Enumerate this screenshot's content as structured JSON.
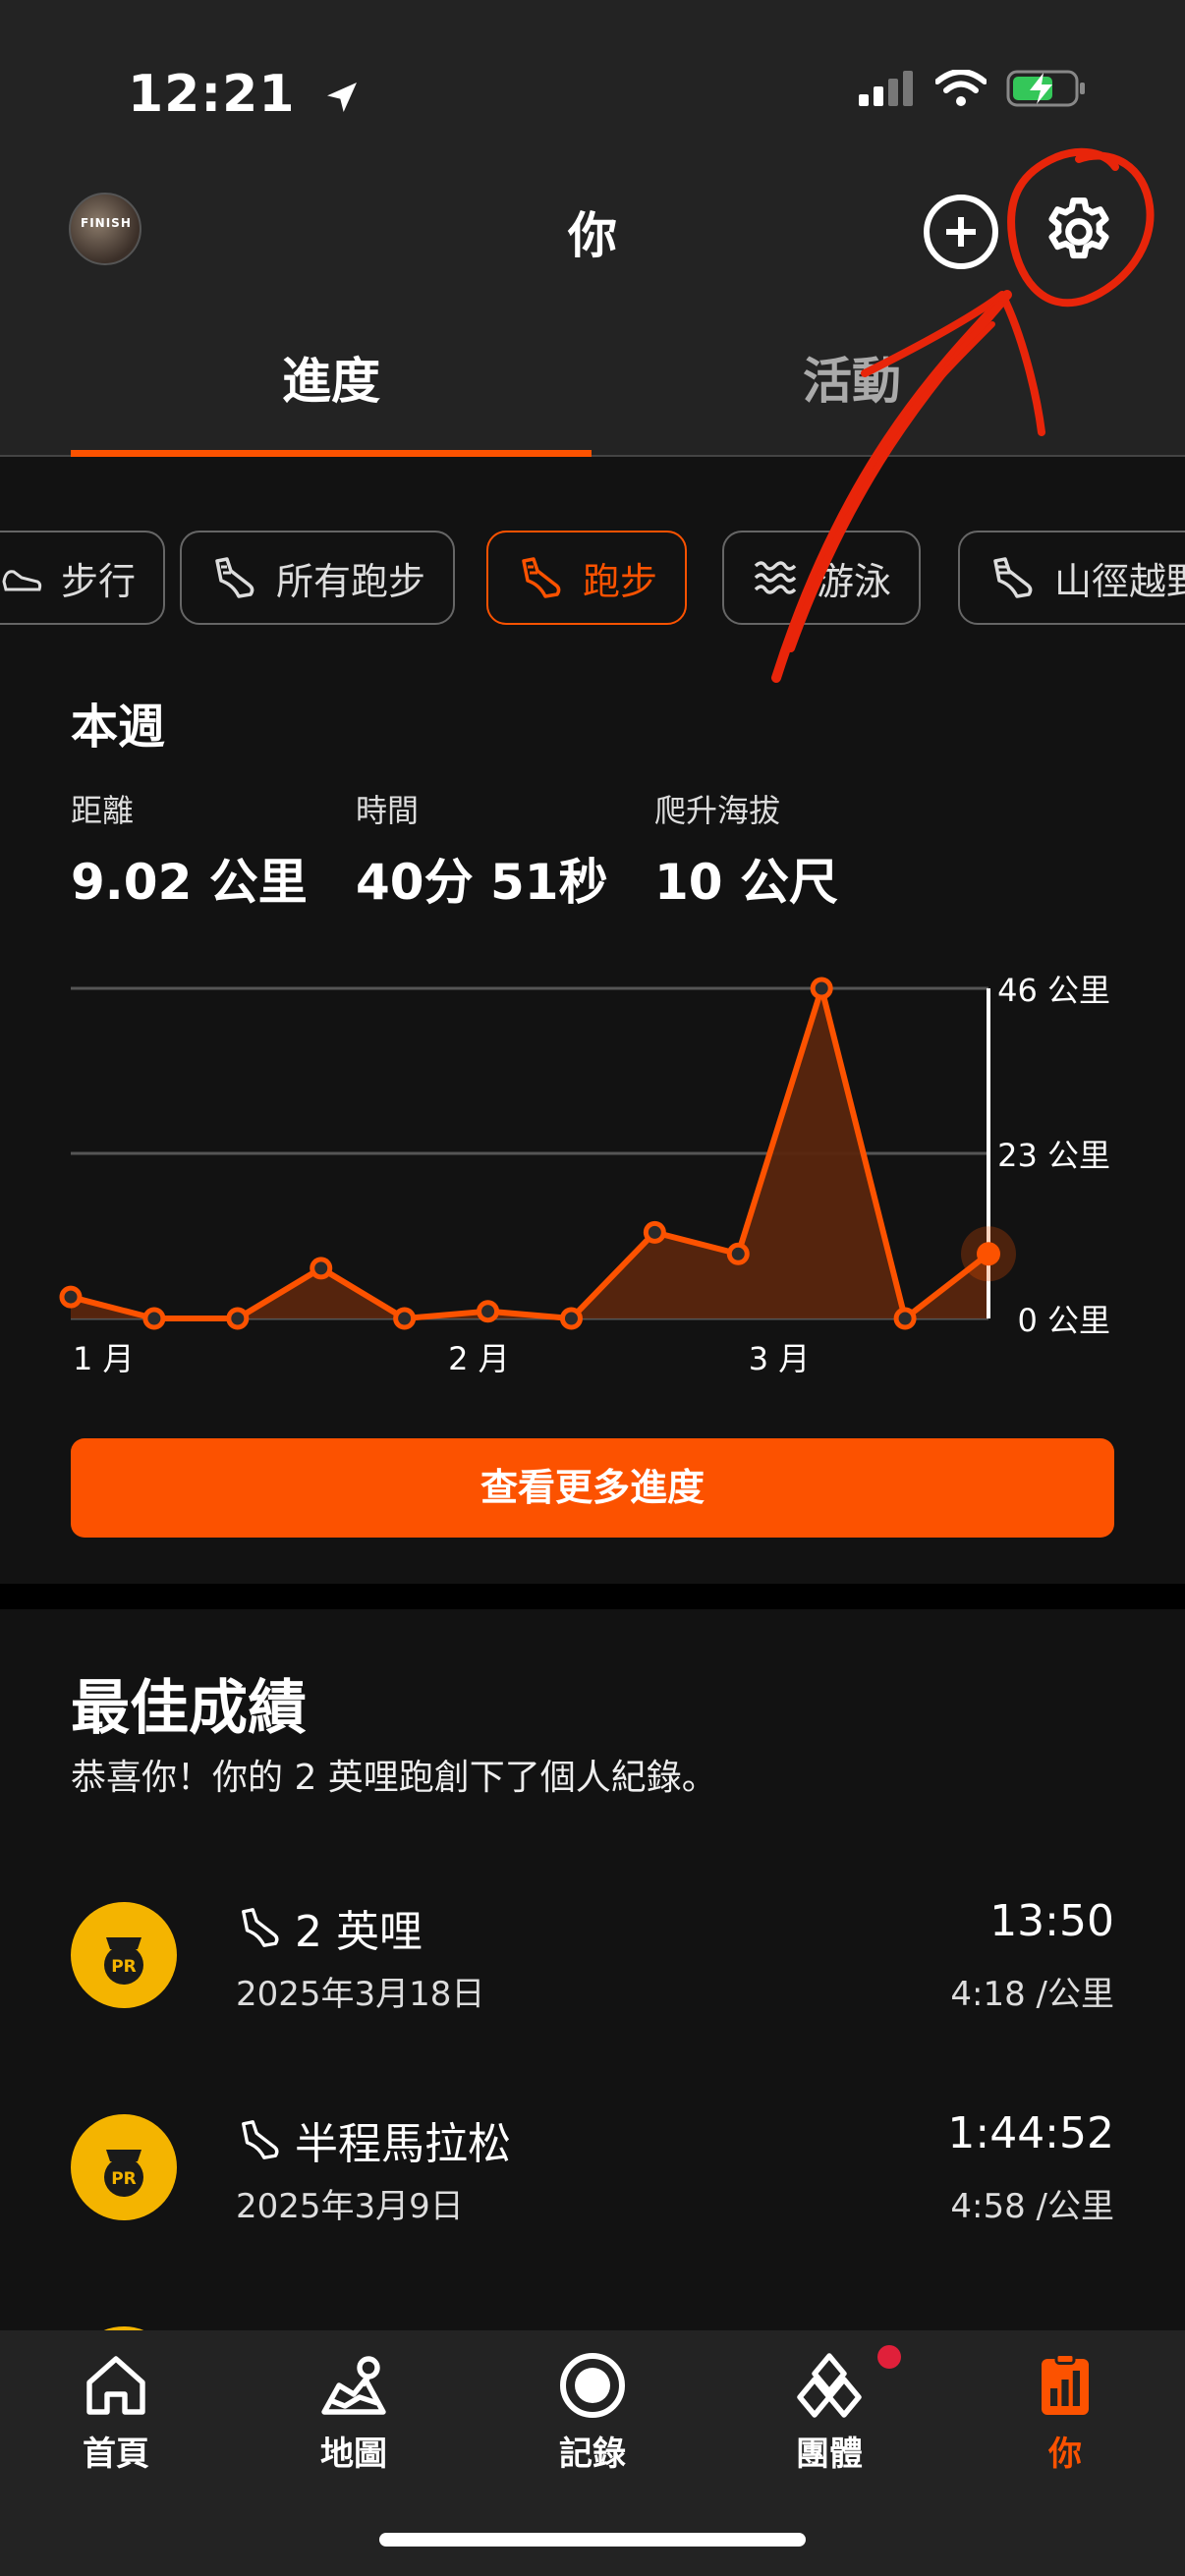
{
  "status": {
    "time": "12:21"
  },
  "header": {
    "title": "你",
    "avatar_text": "FINISH"
  },
  "tabs": [
    {
      "label": "進度"
    },
    {
      "label": "活動"
    }
  ],
  "filters": [
    {
      "label": "步行"
    },
    {
      "label": "所有跑步"
    },
    {
      "label": "跑步"
    },
    {
      "label": "游泳"
    },
    {
      "label": "山徑越野跑"
    }
  ],
  "week": {
    "title": "本週",
    "stats": [
      {
        "label": "距離",
        "value": "9.02 公里"
      },
      {
        "label": "時間",
        "value": "40分 51秒"
      },
      {
        "label": "爬升海拔",
        "value": "10 公尺"
      }
    ]
  },
  "chart_data": {
    "type": "line",
    "title": "",
    "x": [
      "w1",
      "w2",
      "w3",
      "w4",
      "w5",
      "w6",
      "w7",
      "w8",
      "w9",
      "w10",
      "w11",
      "w12"
    ],
    "values": [
      3,
      0,
      0,
      7,
      0,
      1,
      0,
      12,
      9,
      46,
      0,
      9
    ],
    "ylim": [
      0,
      46
    ],
    "y_ticks": [
      "0 公里",
      "23 公里",
      "46 公里"
    ],
    "x_tick_labels": [
      "1 月",
      "2 月",
      "3 月"
    ],
    "grid": true,
    "accent": "#fc5200"
  },
  "more_button": {
    "label": "查看更多進度"
  },
  "best": {
    "title": "最佳成績",
    "subtitle": "恭喜你！你的 2 英哩跑創下了個人紀錄。",
    "records": [
      {
        "name": "2 英哩",
        "date": "2025年3月18日",
        "time": "13:50",
        "pace": "4:18 /公里"
      },
      {
        "name": "半程馬拉松",
        "date": "2025年3月9日",
        "time": "1:44:52",
        "pace": "4:58 /公里"
      }
    ],
    "badge_text": "PR"
  },
  "nav": [
    {
      "label": "首頁"
    },
    {
      "label": "地圖"
    },
    {
      "label": "記錄"
    },
    {
      "label": "團體"
    },
    {
      "label": "你"
    }
  ],
  "colors": {
    "accent": "#fc5200",
    "badge": "#f4b400",
    "annotation": "#e8250a"
  }
}
